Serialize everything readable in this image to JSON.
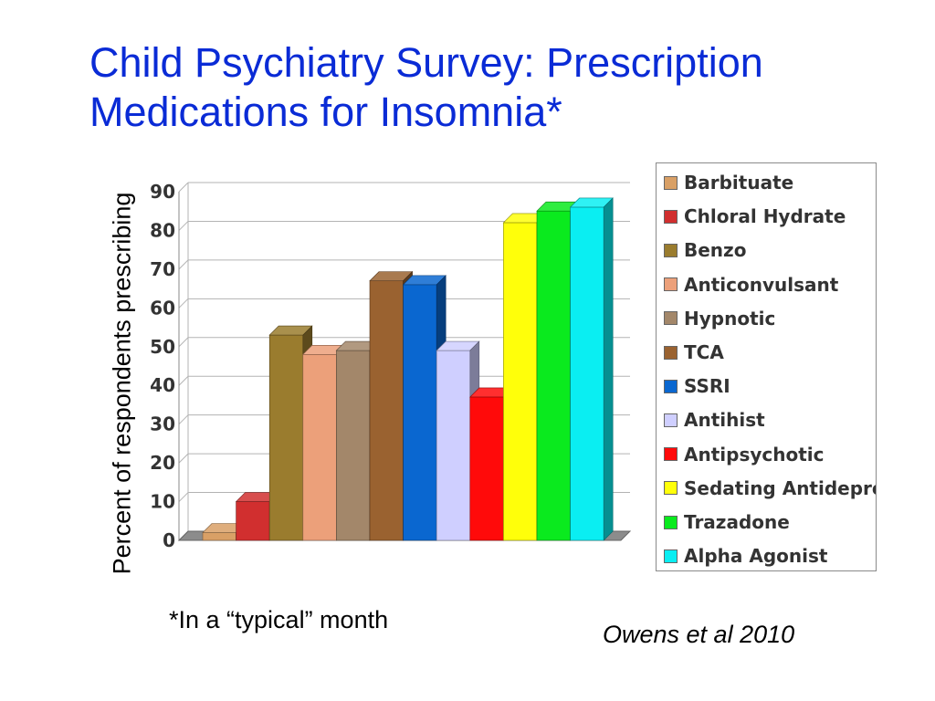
{
  "slide": {
    "title_line1": "Child Psychiatry Survey: Prescription",
    "title_line2": "Medications for Insomnia*",
    "footnote": "*In a “typical” month",
    "citation": "Owens et al 2010",
    "title_color": "#0a2bd6"
  },
  "chart_data": {
    "type": "bar",
    "title": "",
    "xlabel": "",
    "ylabel": "Percent of respondents prescribing",
    "ylim": [
      0,
      90
    ],
    "yticks": [
      0,
      10,
      20,
      30,
      40,
      50,
      60,
      70,
      80,
      90
    ],
    "grid": true,
    "legend_position": "right",
    "style": "3d",
    "series": [
      {
        "name": "Barbituate",
        "value": 2,
        "color": "#d9a066"
      },
      {
        "name": "Chloral Hydrate",
        "value": 10,
        "color": "#d12f2f"
      },
      {
        "name": "Benzo",
        "value": 53,
        "color": "#9a7c2e"
      },
      {
        "name": "Anticonvulsant",
        "value": 48,
        "color": "#eca07a"
      },
      {
        "name": "Hypnotic",
        "value": 49,
        "color": "#a3876a"
      },
      {
        "name": "TCA",
        "value": 67,
        "color": "#9a6230"
      },
      {
        "name": "SSRI",
        "value": 66,
        "color": "#0a67d0"
      },
      {
        "name": "Antihist",
        "value": 49,
        "color": "#cfcfff"
      },
      {
        "name": "Antipsychotic",
        "value": 37,
        "color": "#ff0a0a"
      },
      {
        "name": "Sedating Antidepressant",
        "value": 82,
        "color": "#ffff0a"
      },
      {
        "name": "Trazadone",
        "value": 85,
        "color": "#0aea1e"
      },
      {
        "name": "Alpha Agonist",
        "value": 86,
        "color": "#0aeef2"
      }
    ]
  }
}
